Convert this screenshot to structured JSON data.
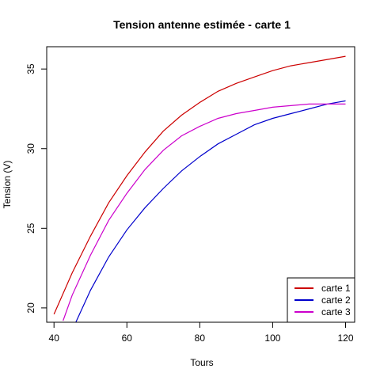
{
  "chart_data": {
    "type": "line",
    "title": "Tension antenne estimée - carte 1",
    "xlabel": "Tours",
    "ylabel": "Tension (V)",
    "xlim": [
      38,
      122.5
    ],
    "ylim": [
      19.1,
      36.4
    ],
    "xticks": [
      40,
      60,
      80,
      100,
      120
    ],
    "yticks": [
      20,
      25,
      30,
      35
    ],
    "grid": false,
    "legend_position": "bottom-right",
    "series": [
      {
        "name": "carte 1",
        "color": "#cc0000",
        "x": [
          40,
          45,
          50,
          55,
          60,
          65,
          70,
          75,
          80,
          85,
          90,
          95,
          100,
          105,
          110,
          115,
          120
        ],
        "y": [
          19.6,
          22.2,
          24.5,
          26.6,
          28.3,
          29.8,
          31.1,
          32.1,
          32.9,
          33.6,
          34.1,
          34.5,
          34.9,
          35.2,
          35.4,
          35.6,
          35.8
        ]
      },
      {
        "name": "carte 2",
        "color": "#0000cc",
        "x": [
          46,
          50,
          55,
          60,
          65,
          70,
          75,
          80,
          85,
          90,
          95,
          100,
          105,
          110,
          115,
          120
        ],
        "y": [
          19.1,
          21.1,
          23.2,
          24.9,
          26.3,
          27.5,
          28.6,
          29.5,
          30.3,
          30.9,
          31.5,
          31.9,
          32.2,
          32.5,
          32.8,
          33.0
        ]
      },
      {
        "name": "carte 3",
        "color": "#cc00cc",
        "x": [
          42.5,
          45,
          50,
          55,
          60,
          65,
          70,
          75,
          80,
          85,
          90,
          95,
          100,
          105,
          110,
          115,
          120
        ],
        "y": [
          19.2,
          20.8,
          23.3,
          25.5,
          27.2,
          28.7,
          29.9,
          30.8,
          31.4,
          31.9,
          32.2,
          32.4,
          32.6,
          32.7,
          32.8,
          32.8,
          32.8
        ]
      }
    ]
  }
}
